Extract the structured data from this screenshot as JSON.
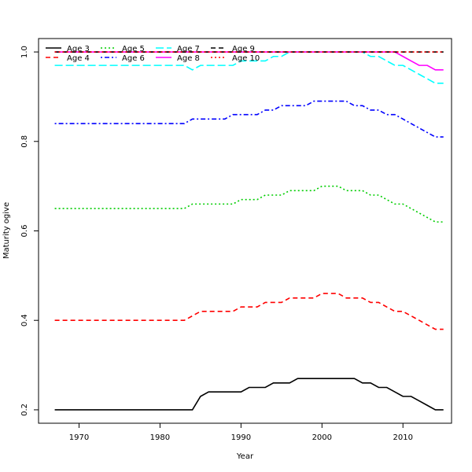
{
  "chart_data": {
    "type": "line",
    "title": "",
    "xlabel": "Year",
    "ylabel": "Maturity ogive",
    "xlim": [
      1965,
      2016
    ],
    "ylim": [
      0.17,
      1.03
    ],
    "x_ticks": [
      1970,
      1980,
      1990,
      2000,
      2010
    ],
    "y_ticks": [
      0.2,
      0.4,
      0.6,
      0.8,
      1.0
    ],
    "x_tick_labels": [
      "1970",
      "1980",
      "1990",
      "2000",
      "2010"
    ],
    "y_tick_labels": [
      "0.2",
      "0.4",
      "0.6",
      "0.8",
      "1.0"
    ],
    "grid": false,
    "legend_position": "top-left",
    "series": [
      {
        "name": "Age 3",
        "color": "#000000",
        "dash": "solid",
        "points": [
          [
            1967,
            0.2
          ],
          [
            1984,
            0.2
          ],
          [
            1985,
            0.23
          ],
          [
            1986,
            0.24
          ],
          [
            1990,
            0.24
          ],
          [
            1991,
            0.25
          ],
          [
            1993,
            0.25
          ],
          [
            1994,
            0.26
          ],
          [
            1996,
            0.26
          ],
          [
            1997,
            0.27
          ],
          [
            2004,
            0.27
          ],
          [
            2005,
            0.26
          ],
          [
            2006,
            0.26
          ],
          [
            2007,
            0.25
          ],
          [
            2008,
            0.25
          ],
          [
            2009,
            0.24
          ],
          [
            2010,
            0.23
          ],
          [
            2011,
            0.23
          ],
          [
            2012,
            0.22
          ],
          [
            2013,
            0.21
          ],
          [
            2014,
            0.2
          ],
          [
            2015,
            0.2
          ]
        ]
      },
      {
        "name": "Age 4",
        "color": "#ff0000",
        "dash": "dashed",
        "points": [
          [
            1967,
            0.4
          ],
          [
            1983,
            0.4
          ],
          [
            1984,
            0.41
          ],
          [
            1985,
            0.42
          ],
          [
            1989,
            0.42
          ],
          [
            1990,
            0.43
          ],
          [
            1992,
            0.43
          ],
          [
            1993,
            0.44
          ],
          [
            1995,
            0.44
          ],
          [
            1996,
            0.45
          ],
          [
            1999,
            0.45
          ],
          [
            2000,
            0.46
          ],
          [
            2002,
            0.46
          ],
          [
            2003,
            0.45
          ],
          [
            2005,
            0.45
          ],
          [
            2006,
            0.44
          ],
          [
            2007,
            0.44
          ],
          [
            2008,
            0.43
          ],
          [
            2009,
            0.42
          ],
          [
            2010,
            0.42
          ],
          [
            2011,
            0.41
          ],
          [
            2012,
            0.4
          ],
          [
            2013,
            0.39
          ],
          [
            2014,
            0.38
          ],
          [
            2015,
            0.38
          ]
        ]
      },
      {
        "name": "Age 5",
        "color": "#00cd00",
        "dash": "dotted",
        "points": [
          [
            1967,
            0.65
          ],
          [
            1983,
            0.65
          ],
          [
            1984,
            0.66
          ],
          [
            1989,
            0.66
          ],
          [
            1990,
            0.67
          ],
          [
            1992,
            0.67
          ],
          [
            1993,
            0.68
          ],
          [
            1995,
            0.68
          ],
          [
            1996,
            0.69
          ],
          [
            1999,
            0.69
          ],
          [
            2000,
            0.7
          ],
          [
            2002,
            0.7
          ],
          [
            2003,
            0.69
          ],
          [
            2005,
            0.69
          ],
          [
            2006,
            0.68
          ],
          [
            2007,
            0.68
          ],
          [
            2008,
            0.67
          ],
          [
            2009,
            0.66
          ],
          [
            2010,
            0.66
          ],
          [
            2011,
            0.65
          ],
          [
            2012,
            0.64
          ],
          [
            2013,
            0.63
          ],
          [
            2014,
            0.62
          ],
          [
            2015,
            0.62
          ]
        ]
      },
      {
        "name": "Age 6",
        "color": "#0000ff",
        "dash": "dotdash",
        "points": [
          [
            1967,
            0.84
          ],
          [
            1983,
            0.84
          ],
          [
            1984,
            0.85
          ],
          [
            1988,
            0.85
          ],
          [
            1989,
            0.86
          ],
          [
            1992,
            0.86
          ],
          [
            1993,
            0.87
          ],
          [
            1994,
            0.87
          ],
          [
            1995,
            0.88
          ],
          [
            1998,
            0.88
          ],
          [
            1999,
            0.89
          ],
          [
            2003,
            0.89
          ],
          [
            2004,
            0.88
          ],
          [
            2005,
            0.88
          ],
          [
            2006,
            0.87
          ],
          [
            2007,
            0.87
          ],
          [
            2008,
            0.86
          ],
          [
            2009,
            0.86
          ],
          [
            2010,
            0.85
          ],
          [
            2011,
            0.84
          ],
          [
            2012,
            0.83
          ],
          [
            2013,
            0.82
          ],
          [
            2014,
            0.81
          ],
          [
            2015,
            0.81
          ]
        ]
      },
      {
        "name": "Age 7",
        "color": "#00ffff",
        "dash": "longdash",
        "points": [
          [
            1967,
            0.97
          ],
          [
            1983,
            0.97
          ],
          [
            1984,
            0.96
          ],
          [
            1985,
            0.97
          ],
          [
            1989,
            0.97
          ],
          [
            1990,
            0.98
          ],
          [
            1993,
            0.98
          ],
          [
            1994,
            0.99
          ],
          [
            1995,
            0.99
          ],
          [
            1996,
            1.0
          ],
          [
            2004,
            1.0
          ],
          [
            2005,
            1.0
          ],
          [
            2006,
            0.99
          ],
          [
            2007,
            0.99
          ],
          [
            2008,
            0.98
          ],
          [
            2009,
            0.97
          ],
          [
            2010,
            0.97
          ],
          [
            2011,
            0.96
          ],
          [
            2012,
            0.95
          ],
          [
            2013,
            0.94
          ],
          [
            2014,
            0.93
          ],
          [
            2015,
            0.93
          ]
        ]
      },
      {
        "name": "Age 8",
        "color": "#ff00ff",
        "dash": "solid",
        "points": [
          [
            1967,
            1.0
          ],
          [
            2009,
            1.0
          ],
          [
            2010,
            0.99
          ],
          [
            2011,
            0.98
          ],
          [
            2012,
            0.97
          ],
          [
            2013,
            0.97
          ],
          [
            2014,
            0.96
          ],
          [
            2015,
            0.96
          ]
        ]
      },
      {
        "name": "Age 9",
        "color": "#000000",
        "dash": "dashed",
        "points": [
          [
            1967,
            1.0
          ],
          [
            2015,
            1.0
          ]
        ]
      },
      {
        "name": "Age 10",
        "color": "#ff0000",
        "dash": "dotted",
        "points": [
          [
            1967,
            1.0
          ],
          [
            2015,
            1.0
          ]
        ]
      }
    ]
  }
}
